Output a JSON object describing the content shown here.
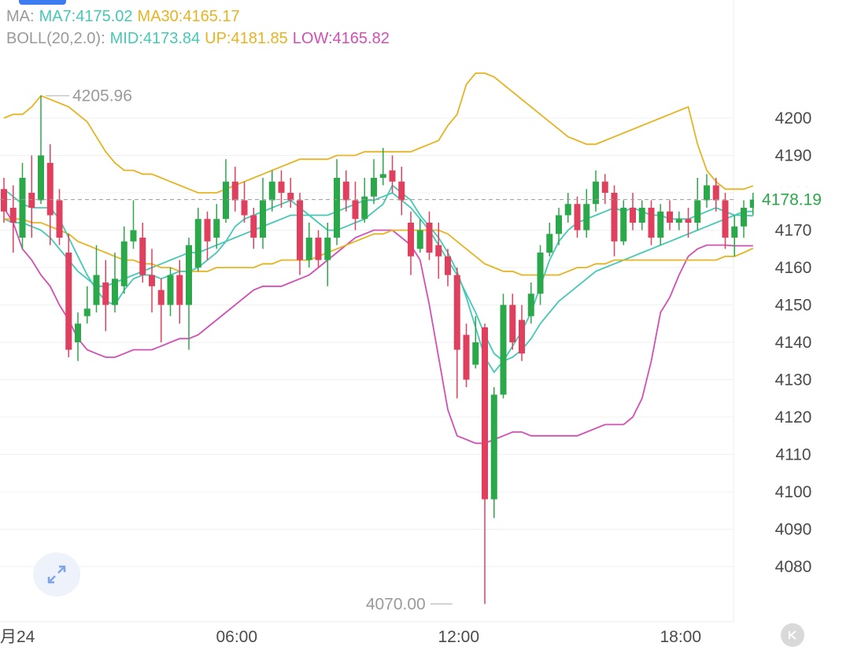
{
  "legend": {
    "ma_label": "MA:",
    "ma7": "MA7:4175.02",
    "ma30": "MA30:4165.17",
    "boll_label": "BOLL(20,2.0):",
    "mid": "MID:4173.84",
    "up": "UP:4181.85",
    "low": "LOW:4165.82"
  },
  "colors": {
    "up_candle": "#2aa84a",
    "down_candle": "#e0405e",
    "ma7": "#46c9b4",
    "ma30": "#e6b422",
    "boll_mid": "#46c9b4",
    "boll_up": "#e6b422",
    "boll_low": "#d24fb4",
    "current_price": "#2aa84a"
  },
  "chart_data": {
    "type": "candlestick",
    "ylim": [
      4065,
      4222
    ],
    "y_ticks": [
      4200,
      4190,
      4180,
      4170,
      4160,
      4150,
      4140,
      4130,
      4120,
      4110,
      4100,
      4090,
      4080
    ],
    "x_ticks": [
      {
        "label": "月24",
        "index": 0
      },
      {
        "label": "06:00",
        "index": 25
      },
      {
        "label": "12:00",
        "index": 49
      },
      {
        "label": "18:00",
        "index": 73
      }
    ],
    "current_price": "4178.19",
    "annotations": [
      {
        "text": "4205.96",
        "index": 4,
        "value": 4205.96
      },
      {
        "text": "4070.00",
        "index": 49,
        "value": 4070.0
      }
    ],
    "candles": [
      [
        4181,
        4175,
        4184,
        4172
      ],
      [
        4176,
        4172,
        4182,
        4164
      ],
      [
        4168,
        4184,
        4188,
        4165
      ],
      [
        4180,
        4176,
        4190,
        4168
      ],
      [
        4178,
        4190,
        4206,
        4177
      ],
      [
        4188,
        4174,
        4193,
        4166
      ],
      [
        4178,
        4168,
        4181,
        4166
      ],
      [
        4164,
        4138,
        4169,
        4136
      ],
      [
        4140,
        4145,
        4148,
        4135
      ],
      [
        4147,
        4149,
        4155,
        4145
      ],
      [
        4150,
        4158,
        4166,
        4148
      ],
      [
        4156,
        4150,
        4162,
        4143
      ],
      [
        4150,
        4157,
        4164,
        4148
      ],
      [
        4155,
        4167,
        4171,
        4153
      ],
      [
        4167,
        4170,
        4178,
        4165
      ],
      [
        4168,
        4158,
        4172,
        4156
      ],
      [
        4158,
        4155,
        4165,
        4148
      ],
      [
        4154,
        4150,
        4157,
        4140
      ],
      [
        4150,
        4158,
        4160,
        4147
      ],
      [
        4158,
        4150,
        4162,
        4145
      ],
      [
        4150,
        4166,
        4168,
        4138
      ],
      [
        4160,
        4173,
        4176,
        4159
      ],
      [
        4173,
        4167,
        4175,
        4162
      ],
      [
        4168,
        4173,
        4177,
        4165
      ],
      [
        4173,
        4183,
        4189,
        4172
      ],
      [
        4183,
        4178,
        4187,
        4175
      ],
      [
        4178,
        4174,
        4183,
        4172
      ],
      [
        4174,
        4168,
        4176,
        4165
      ],
      [
        4168,
        4178,
        4184,
        4165
      ],
      [
        4178,
        4183,
        4186,
        4175
      ],
      [
        4183,
        4180,
        4186,
        4176
      ],
      [
        4180,
        4178,
        4184,
        4176
      ],
      [
        4178,
        4162,
        4180,
        4158
      ],
      [
        4162,
        4168,
        4172,
        4160
      ],
      [
        4168,
        4162,
        4170,
        4160
      ],
      [
        4162,
        4168,
        4172,
        4155
      ],
      [
        4168,
        4184,
        4189,
        4166
      ],
      [
        4183,
        4178,
        4186,
        4175
      ],
      [
        4178,
        4173,
        4183,
        4170
      ],
      [
        4173,
        4179,
        4184,
        4172
      ],
      [
        4179,
        4184,
        4189,
        4177
      ],
      [
        4184,
        4185,
        4192,
        4182
      ],
      [
        4186,
        4183,
        4190,
        4180
      ],
      [
        4183,
        4178,
        4187,
        4174
      ],
      [
        4172,
        4163,
        4175,
        4158
      ],
      [
        4165,
        4170,
        4173,
        4164
      ],
      [
        4172,
        4164,
        4175,
        4162
      ],
      [
        4166,
        4163,
        4172,
        4157
      ],
      [
        4163,
        4158,
        4165,
        4155
      ],
      [
        4158,
        4138,
        4160,
        4125
      ],
      [
        4142,
        4130,
        4145,
        4128
      ],
      [
        4134,
        4140,
        4147,
        4133
      ],
      [
        4144,
        4098,
        4145,
        4070
      ],
      [
        4098,
        4126,
        4128,
        4093
      ],
      [
        4126,
        4150,
        4153,
        4125
      ],
      [
        4150,
        4140,
        4153,
        4138
      ],
      [
        4146,
        4137,
        4150,
        4135
      ],
      [
        4147,
        4153,
        4156,
        4145
      ],
      [
        4153,
        4164,
        4166,
        4150
      ],
      [
        4164,
        4169,
        4172,
        4163
      ],
      [
        4169,
        4174,
        4176,
        4166
      ],
      [
        4174,
        4177,
        4180,
        4172
      ],
      [
        4177,
        4170,
        4179,
        4168
      ],
      [
        4170,
        4177,
        4181,
        4168
      ],
      [
        4177,
        4183,
        4186,
        4175
      ],
      [
        4183,
        4180,
        4185,
        4177
      ],
      [
        4180,
        4167,
        4182,
        4163
      ],
      [
        4167,
        4176,
        4178,
        4166
      ],
      [
        4176,
        4172,
        4180,
        4170
      ],
      [
        4172,
        4176,
        4178,
        4170
      ],
      [
        4176,
        4168,
        4178,
        4166
      ],
      [
        4168,
        4175,
        4177,
        4166
      ],
      [
        4175,
        4172,
        4178,
        4170
      ],
      [
        4172,
        4173,
        4175,
        4170
      ],
      [
        4173,
        4172,
        4176,
        4168
      ],
      [
        4172,
        4178,
        4184,
        4170
      ],
      [
        4178,
        4182,
        4185,
        4176
      ],
      [
        4182,
        4178,
        4184,
        4175
      ],
      [
        4178,
        4168,
        4180,
        4165
      ],
      [
        4168,
        4171,
        4174,
        4163
      ],
      [
        4171,
        4176,
        4178,
        4168
      ],
      [
        4176,
        4178.19,
        4180,
        4174
      ]
    ],
    "ma7": [
      4181,
      4179,
      4177,
      4176,
      4176,
      4176,
      4173,
      4168,
      4163,
      4158,
      4154,
      4151,
      4150,
      4154,
      4157,
      4158,
      4158,
      4157,
      4158,
      4159,
      4159,
      4160,
      4162,
      4164,
      4167,
      4171,
      4173,
      4174,
      4175,
      4176,
      4177,
      4178,
      4176,
      4174,
      4172,
      4170,
      4170,
      4171,
      4172,
      4173,
      4175,
      4177,
      4182,
      4180,
      4178,
      4174,
      4171,
      4168,
      4164,
      4159,
      4152,
      4144,
      4136,
      4132,
      4135,
      4139,
      4143,
      4148,
      4155,
      4162,
      4167,
      4170,
      4172,
      4173,
      4174,
      4175,
      4176,
      4175,
      4176,
      4175,
      4174,
      4174,
      4173,
      4173,
      4173,
      4174,
      4175,
      4176,
      4175,
      4174,
      4175,
      4175.02
    ],
    "ma30": [
      4173,
      4173,
      4173,
      4172,
      4172,
      4171,
      4170,
      4169,
      4167,
      4166,
      4165,
      4164,
      4163,
      4162,
      4162,
      4161,
      4161,
      4160,
      4160,
      4159,
      4159,
      4159,
      4159,
      4160,
      4160,
      4160,
      4160,
      4160,
      4161,
      4161,
      4162,
      4162,
      4162,
      4162,
      4163,
      4164,
      4165,
      4166,
      4167,
      4168,
      4169,
      4169,
      4170,
      4170,
      4170,
      4170,
      4170,
      4170,
      4169,
      4167,
      4165,
      4163,
      4161,
      4160,
      4159,
      4159,
      4158,
      4158,
      4158,
      4158,
      4158,
      4159,
      4160,
      4160,
      4161,
      4161,
      4162,
      4162,
      4162,
      4162,
      4162,
      4162,
      4162,
      4162,
      4162,
      4162,
      4162,
      4162,
      4163,
      4163,
      4164,
      4165.17
    ],
    "boll_mid": [
      4173,
      4172,
      4172,
      4171,
      4170,
      4168,
      4165,
      4162,
      4159,
      4157,
      4155,
      4155,
      4156,
      4157,
      4158,
      4159,
      4160,
      4161,
      4162,
      4163,
      4164,
      4164,
      4165,
      4166,
      4167,
      4168,
      4169,
      4170,
      4171,
      4172,
      4173,
      4174,
      4174,
      4174,
      4174,
      4174,
      4175,
      4176,
      4177,
      4178,
      4178,
      4179,
      4180,
      4178,
      4176,
      4173,
      4170,
      4166,
      4162,
      4158,
      4153,
      4148,
      4142,
      4137,
      4135,
      4136,
      4138,
      4141,
      4145,
      4148,
      4151,
      4153,
      4155,
      4157,
      4159,
      4160,
      4161,
      4162,
      4163,
      4164,
      4165,
      4166,
      4167,
      4168,
      4169,
      4170,
      4171,
      4172,
      4173,
      4174,
      4174,
      4173.84
    ],
    "boll_up": [
      4200,
      4201,
      4201,
      4203,
      4205.96,
      4205,
      4204,
      4203,
      4201,
      4199,
      4195,
      4191,
      4188,
      4186,
      4186,
      4185,
      4185,
      4184,
      4183,
      4182,
      4181,
      4180,
      4180,
      4180,
      4181,
      4182,
      4183,
      4184,
      4185,
      4186,
      4187,
      4188,
      4189,
      4189,
      4189,
      4189,
      4190,
      4190,
      4190,
      4191,
      4191,
      4191,
      4191,
      4191,
      4191,
      4192,
      4193,
      4194,
      4198,
      4201,
      4209,
      4212,
      4212,
      4211,
      4209,
      4207,
      4205,
      4203,
      4201,
      4199,
      4197,
      4195,
      4194,
      4193,
      4193,
      4194,
      4195,
      4196,
      4197,
      4198,
      4199,
      4200,
      4201,
      4202,
      4203,
      4193,
      4186,
      4183,
      4181,
      4181,
      4181,
      4181.85
    ],
    "boll_low": [
      4176,
      4172,
      4165,
      4162,
      4158,
      4155,
      4150,
      4146,
      4141,
      4138,
      4137,
      4136,
      4136,
      4137,
      4138,
      4138,
      4138,
      4139,
      4140,
      4141,
      4141,
      4142,
      4144,
      4146,
      4148,
      4150,
      4152,
      4154,
      4155,
      4155,
      4155,
      4156,
      4157,
      4158,
      4160,
      4162,
      4164,
      4166,
      4168,
      4169,
      4170,
      4170,
      4170,
      4168,
      4166,
      4162,
      4150,
      4136,
      4122,
      4115,
      4114,
      4113,
      4113,
      4114,
      4115,
      4116,
      4116,
      4115,
      4115,
      4115,
      4115,
      4115,
      4115,
      4116,
      4117,
      4118,
      4118,
      4118,
      4120,
      4125,
      4135,
      4148,
      4152,
      4158,
      4163,
      4165,
      4166,
      4166,
      4166,
      4165.82,
      4165.82,
      4165.82
    ]
  }
}
